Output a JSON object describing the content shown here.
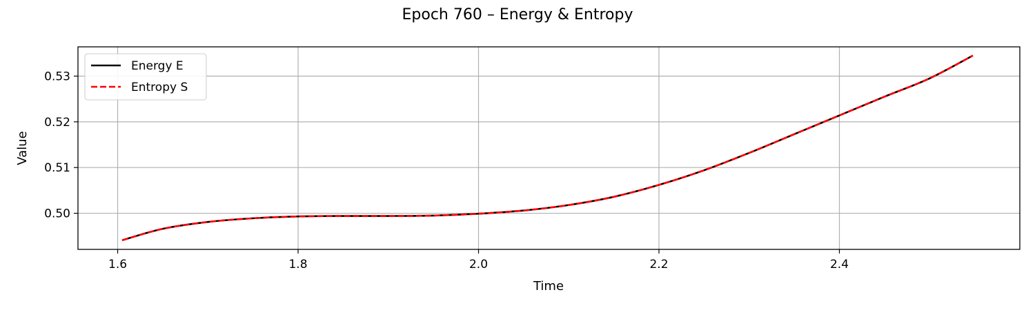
{
  "chart_data": {
    "type": "line",
    "title": "Epoch 760 – Energy & Entropy",
    "xlabel": "Time",
    "ylabel": "Value",
    "xlim": [
      1.556,
      2.6
    ],
    "ylim": [
      0.4921,
      0.5364
    ],
    "xticks": [
      1.6,
      1.8,
      2.0,
      2.2,
      2.4
    ],
    "xtick_labels": [
      "1.6",
      "1.8",
      "2.0",
      "2.2",
      "2.4"
    ],
    "yticks": [
      0.5,
      0.51,
      0.52,
      0.53
    ],
    "ytick_labels": [
      "0.50",
      "0.51",
      "0.52",
      "0.53"
    ],
    "grid": true,
    "legend_position": "top-left",
    "x": [
      1.605,
      1.65,
      1.7,
      1.75,
      1.8,
      1.85,
      1.9,
      1.95,
      2.0,
      2.05,
      2.1,
      2.15,
      2.2,
      2.25,
      2.3,
      2.35,
      2.4,
      2.45,
      2.5,
      2.548
    ],
    "series": [
      {
        "name": "Energy E",
        "color": "#000000",
        "style": "solid",
        "values": [
          0.4941,
          0.4966,
          0.4981,
          0.4989,
          0.4993,
          0.4994,
          0.4994,
          0.4995,
          0.4999,
          0.5006,
          0.5018,
          0.5036,
          0.5062,
          0.5094,
          0.5132,
          0.5173,
          0.5214,
          0.5255,
          0.5295,
          0.5345
        ]
      },
      {
        "name": "Entropy S",
        "color": "#ff0000",
        "style": "dashed",
        "values": [
          0.4941,
          0.4966,
          0.4981,
          0.4989,
          0.4993,
          0.4994,
          0.4994,
          0.4995,
          0.4999,
          0.5006,
          0.5018,
          0.5036,
          0.5062,
          0.5094,
          0.5132,
          0.5173,
          0.5214,
          0.5255,
          0.5295,
          0.5345
        ]
      }
    ]
  }
}
